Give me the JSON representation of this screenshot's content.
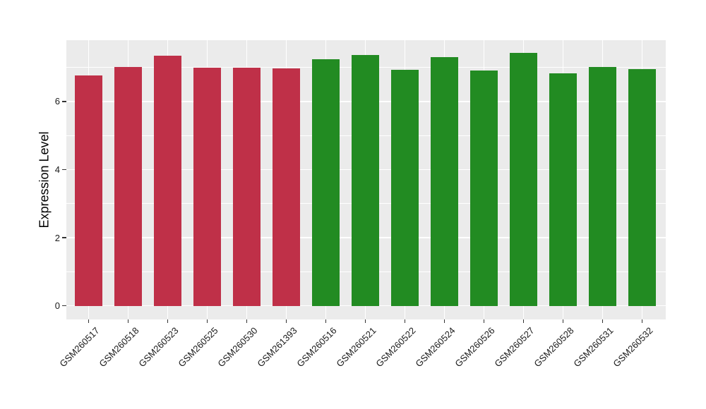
{
  "chart_data": {
    "type": "bar",
    "title": "",
    "xlabel": "",
    "ylabel": "Expression Level",
    "categories": [
      "GSM260517",
      "GSM260518",
      "GSM260523",
      "GSM260525",
      "GSM260530",
      "GSM261393",
      "GSM260516",
      "GSM260521",
      "GSM260522",
      "GSM260524",
      "GSM260526",
      "GSM260527",
      "GSM260528",
      "GSM260531",
      "GSM260532"
    ],
    "values": [
      6.76,
      7.02,
      7.35,
      7.0,
      7.0,
      6.97,
      7.25,
      7.36,
      6.92,
      7.3,
      6.9,
      7.43,
      6.82,
      7.02,
      6.95
    ],
    "bar_colors": [
      "#BF3048",
      "#BF3048",
      "#BF3048",
      "#BF3048",
      "#BF3048",
      "#BF3048",
      "#228B22",
      "#228B22",
      "#228B22",
      "#228B22",
      "#228B22",
      "#228B22",
      "#228B22",
      "#228B22",
      "#228B22"
    ],
    "groups": [
      {
        "label": "red-group",
        "color": "#BF3048",
        "categories": [
          "GSM260517",
          "GSM260518",
          "GSM260523",
          "GSM260525",
          "GSM260530",
          "GSM261393"
        ]
      },
      {
        "label": "green-group",
        "color": "#228B22",
        "categories": [
          "GSM260516",
          "GSM260521",
          "GSM260522",
          "GSM260524",
          "GSM260526",
          "GSM260527",
          "GSM260528",
          "GSM260531",
          "GSM260532"
        ]
      }
    ],
    "y_ticks": [
      0,
      2,
      4,
      6
    ],
    "y_minor_ticks": [
      1,
      3,
      5,
      7
    ],
    "ylim": [
      -0.4,
      7.8
    ],
    "x_tick_rotation_deg": 45,
    "grid": "horizontal major+minor, vertical major at category centers",
    "legend_position": "none",
    "panel_background": "#EBEBEB",
    "grid_color": "#FFFFFF",
    "axis_text_color": "#1A1A1A",
    "axis_title_color": "#000000"
  }
}
